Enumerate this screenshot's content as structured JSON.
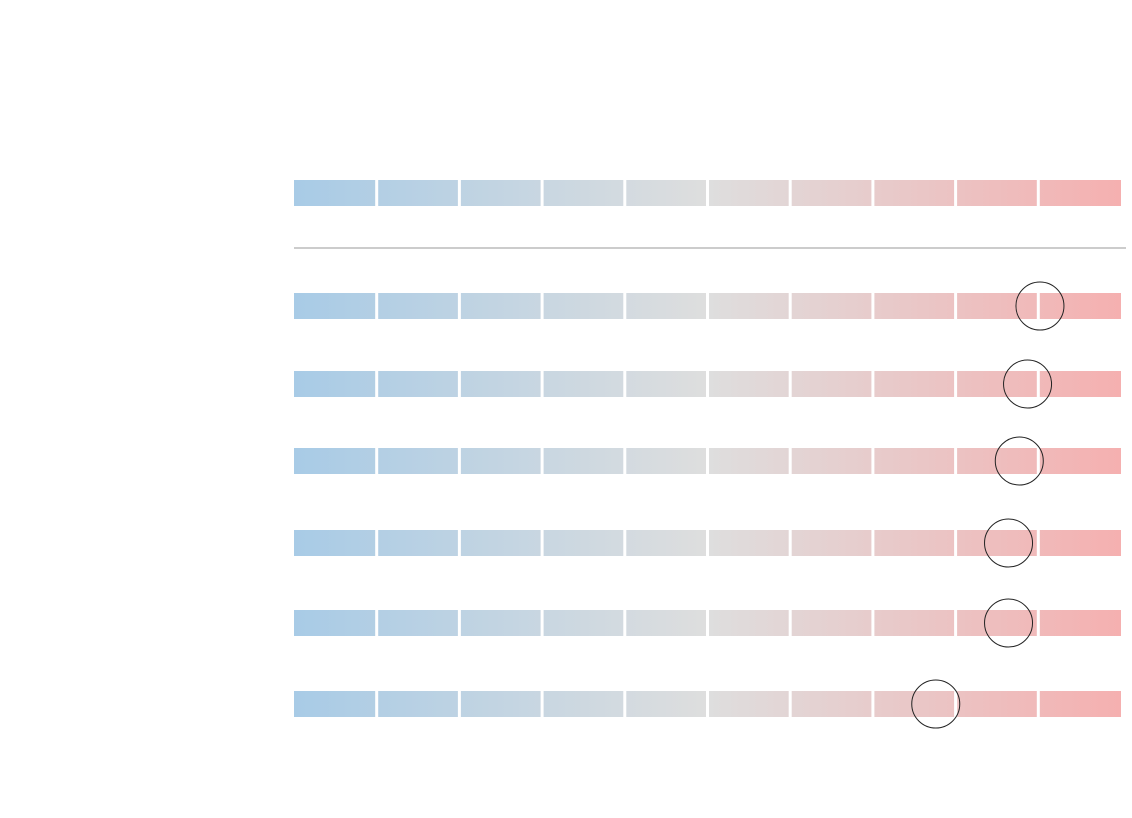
{
  "chart_data": {
    "type": "scatter",
    "scale": {
      "segments": 10,
      "color_from": "#a8cbe6",
      "color_mid": "#dedede",
      "color_to": "#f5b0b0"
    },
    "grid": false,
    "marker": {
      "shape": "circle",
      "fill": "none",
      "stroke": "#222222"
    },
    "header_rows": 1,
    "rows": [
      {
        "value": null
      },
      {
        "value": 0.902
      },
      {
        "value": 0.887
      },
      {
        "value": 0.877
      },
      {
        "value": 0.864
      },
      {
        "value": 0.864
      },
      {
        "value": 0.776
      }
    ]
  }
}
